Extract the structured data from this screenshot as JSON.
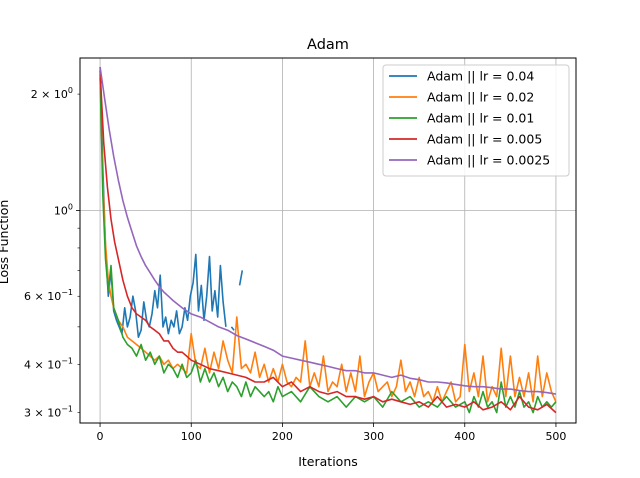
{
  "chart_data": {
    "type": "line",
    "title": "Adam",
    "xlabel": "Iterations",
    "ylabel": "Loss Function",
    "yscale": "log",
    "xlim": [
      -22,
      522
    ],
    "ylim": [
      0.282,
      2.48
    ],
    "grid": true,
    "legend_position": "top-right",
    "xticks": [
      0,
      100,
      200,
      300,
      400,
      500
    ],
    "xtick_labels": [
      "0",
      "100",
      "200",
      "300",
      "400",
      "500"
    ],
    "yticks_major": [
      1.0
    ],
    "yticks_major_labels": [
      "10^0"
    ],
    "yticks_minor": [
      0.3,
      0.4,
      0.6,
      2.0
    ],
    "yticks_minor_labels": [
      "3×10^-1",
      "4×10^-1",
      "6×10^-1",
      "2×10^0"
    ],
    "yticks_unlabeled": [
      0.5,
      0.7,
      0.8,
      0.9
    ],
    "series": [
      {
        "name": "Adam || lr = 0.04",
        "color": "#1f77b4",
        "x": [
          0,
          3,
          6,
          9,
          12,
          15,
          18,
          21,
          24,
          27,
          30,
          33,
          36,
          39,
          42,
          45,
          48,
          51,
          54,
          57,
          60,
          63,
          66,
          69,
          72,
          75,
          78,
          81,
          84,
          87,
          90,
          93,
          96,
          99,
          102,
          105,
          108,
          111,
          114,
          117,
          120,
          123,
          126,
          129,
          132,
          135,
          138,
          141,
          144,
          147,
          150,
          153,
          156
        ],
        "y": [
          2.35,
          1.3,
          0.8,
          0.6,
          0.7,
          0.55,
          0.52,
          0.5,
          0.48,
          0.56,
          0.5,
          0.53,
          0.6,
          0.55,
          0.47,
          0.49,
          0.58,
          0.52,
          0.5,
          0.54,
          0.62,
          0.56,
          0.68,
          0.5,
          0.53,
          0.48,
          0.52,
          0.5,
          0.55,
          0.48,
          0.5,
          0.56,
          0.52,
          0.6,
          0.65,
          0.77,
          0.55,
          0.64,
          0.52,
          0.6,
          0.76,
          0.55,
          0.62,
          0.53,
          0.72,
          0.58,
          0.5,
          null,
          0.5,
          0.49,
          null,
          0.64,
          0.7
        ]
      },
      {
        "name": "Adam || lr = 0.02",
        "color": "#ff7f0e",
        "x": [
          0,
          3,
          6,
          9,
          12,
          15,
          20,
          25,
          30,
          35,
          40,
          45,
          50,
          55,
          60,
          65,
          70,
          75,
          80,
          85,
          90,
          95,
          100,
          105,
          110,
          115,
          120,
          125,
          130,
          135,
          140,
          145,
          150,
          155,
          160,
          165,
          170,
          175,
          180,
          185,
          190,
          195,
          200,
          205,
          210,
          215,
          220,
          225,
          230,
          235,
          240,
          245,
          250,
          255,
          260,
          265,
          270,
          275,
          280,
          285,
          290,
          295,
          300,
          305,
          310,
          315,
          320,
          325,
          330,
          335,
          340,
          345,
          350,
          355,
          360,
          365,
          370,
          375,
          380,
          385,
          390,
          395,
          400,
          405,
          410,
          415,
          420,
          425,
          430,
          435,
          440,
          445,
          450,
          455,
          460,
          465,
          470,
          475,
          480,
          485,
          490,
          495,
          500
        ],
        "y": [
          2.2,
          1.2,
          0.82,
          0.66,
          0.6,
          0.56,
          0.52,
          0.5,
          0.47,
          0.46,
          0.45,
          0.44,
          0.43,
          0.42,
          0.41,
          0.42,
          0.4,
          0.41,
          0.39,
          0.4,
          0.39,
          0.38,
          0.48,
          0.4,
          0.39,
          0.44,
          0.38,
          0.43,
          0.39,
          0.46,
          0.41,
          0.38,
          0.53,
          0.39,
          0.4,
          0.38,
          0.43,
          0.37,
          0.4,
          0.36,
          0.39,
          0.36,
          0.4,
          0.36,
          0.35,
          0.37,
          0.36,
          0.46,
          0.35,
          0.38,
          0.35,
          0.42,
          0.34,
          0.36,
          0.35,
          0.4,
          0.34,
          0.38,
          0.34,
          0.42,
          0.33,
          0.36,
          0.38,
          0.34,
          0.35,
          0.36,
          0.33,
          0.35,
          0.41,
          0.34,
          0.36,
          0.33,
          0.37,
          0.33,
          0.34,
          0.32,
          0.35,
          0.32,
          0.34,
          0.36,
          0.32,
          0.33,
          0.45,
          0.34,
          0.38,
          0.33,
          0.42,
          0.32,
          0.35,
          0.33,
          0.44,
          0.33,
          0.42,
          0.33,
          0.37,
          0.33,
          0.38,
          0.32,
          0.42,
          0.33,
          0.38,
          0.34,
          0.32
        ]
      },
      {
        "name": "Adam || lr = 0.01",
        "color": "#2ca02c",
        "x": [
          0,
          3,
          6,
          9,
          12,
          15,
          20,
          25,
          30,
          35,
          40,
          45,
          50,
          55,
          60,
          65,
          70,
          75,
          80,
          85,
          90,
          95,
          100,
          105,
          110,
          115,
          120,
          125,
          130,
          135,
          140,
          145,
          150,
          155,
          160,
          165,
          170,
          175,
          180,
          185,
          190,
          195,
          200,
          210,
          220,
          230,
          240,
          250,
          260,
          270,
          280,
          290,
          300,
          310,
          320,
          330,
          340,
          350,
          360,
          370,
          380,
          390,
          400,
          405,
          410,
          415,
          420,
          425,
          430,
          435,
          440,
          445,
          450,
          455,
          460,
          465,
          470,
          475,
          480,
          485,
          490,
          495,
          500
        ],
        "y": [
          2.25,
          1.1,
          0.75,
          0.62,
          0.72,
          0.56,
          0.52,
          0.47,
          0.45,
          0.44,
          0.42,
          0.45,
          0.41,
          0.43,
          0.4,
          0.42,
          0.38,
          0.4,
          0.39,
          0.37,
          0.4,
          0.37,
          0.38,
          0.41,
          0.36,
          0.39,
          0.36,
          0.38,
          0.35,
          0.37,
          0.34,
          0.36,
          0.35,
          0.33,
          0.36,
          0.33,
          0.35,
          0.34,
          0.33,
          0.34,
          0.32,
          0.35,
          0.33,
          0.34,
          0.32,
          0.35,
          0.33,
          0.32,
          0.33,
          0.31,
          0.33,
          0.32,
          0.33,
          0.31,
          0.34,
          0.32,
          0.33,
          0.31,
          0.32,
          0.31,
          0.33,
          0.31,
          0.32,
          0.3,
          0.33,
          0.31,
          0.34,
          0.31,
          0.32,
          0.3,
          0.36,
          0.31,
          0.33,
          0.31,
          0.34,
          0.31,
          0.32,
          0.3,
          0.33,
          0.31,
          0.32,
          0.31,
          0.32
        ]
      },
      {
        "name": "Adam || lr = 0.005",
        "color": "#d62728",
        "x": [
          0,
          4,
          8,
          12,
          16,
          20,
          25,
          30,
          35,
          40,
          45,
          50,
          55,
          60,
          65,
          70,
          75,
          80,
          85,
          90,
          95,
          100,
          110,
          120,
          130,
          140,
          150,
          160,
          170,
          180,
          190,
          200,
          210,
          220,
          230,
          240,
          250,
          260,
          270,
          280,
          290,
          300,
          310,
          320,
          330,
          340,
          350,
          360,
          370,
          380,
          390,
          400,
          410,
          420,
          430,
          440,
          450,
          460,
          470,
          480,
          490,
          500
        ],
        "y": [
          2.3,
          1.5,
          1.15,
          0.95,
          0.83,
          0.75,
          0.66,
          0.6,
          0.56,
          0.54,
          0.53,
          0.52,
          0.5,
          0.49,
          0.48,
          0.46,
          0.46,
          0.44,
          0.43,
          0.43,
          0.42,
          0.41,
          0.4,
          0.39,
          0.385,
          0.38,
          0.375,
          0.37,
          0.36,
          0.36,
          0.37,
          0.35,
          0.36,
          0.34,
          0.35,
          0.34,
          0.335,
          0.34,
          0.33,
          0.33,
          0.325,
          0.33,
          0.32,
          0.325,
          0.32,
          0.315,
          0.32,
          0.31,
          0.33,
          0.31,
          0.315,
          0.31,
          0.32,
          0.305,
          0.31,
          0.32,
          0.305,
          0.33,
          0.31,
          0.305,
          0.315,
          0.3
        ]
      },
      {
        "name": "Adam || lr = 0.0025",
        "color": "#9467bd",
        "x": [
          0,
          5,
          10,
          15,
          20,
          25,
          30,
          35,
          40,
          45,
          50,
          55,
          60,
          65,
          70,
          75,
          80,
          90,
          100,
          110,
          120,
          130,
          140,
          150,
          160,
          170,
          180,
          190,
          200,
          210,
          220,
          230,
          240,
          250,
          260,
          270,
          280,
          290,
          300,
          310,
          320,
          330,
          340,
          350,
          360,
          370,
          380,
          390,
          400,
          410,
          420,
          430,
          440,
          450,
          460,
          470,
          480,
          490,
          500
        ],
        "y": [
          2.35,
          1.95,
          1.62,
          1.38,
          1.2,
          1.06,
          0.96,
          0.88,
          0.81,
          0.76,
          0.72,
          0.69,
          0.66,
          0.635,
          0.615,
          0.6,
          0.585,
          0.56,
          0.54,
          0.53,
          0.515,
          0.5,
          0.49,
          0.475,
          0.465,
          0.455,
          0.445,
          0.435,
          0.42,
          0.415,
          0.41,
          0.405,
          0.4,
          0.395,
          0.39,
          0.385,
          0.385,
          0.38,
          0.38,
          0.375,
          0.37,
          0.375,
          0.368,
          0.365,
          0.36,
          0.36,
          0.358,
          0.355,
          0.352,
          0.35,
          0.35,
          0.348,
          0.345,
          0.345,
          0.342,
          0.34,
          0.34,
          0.338,
          0.335
        ]
      }
    ]
  }
}
